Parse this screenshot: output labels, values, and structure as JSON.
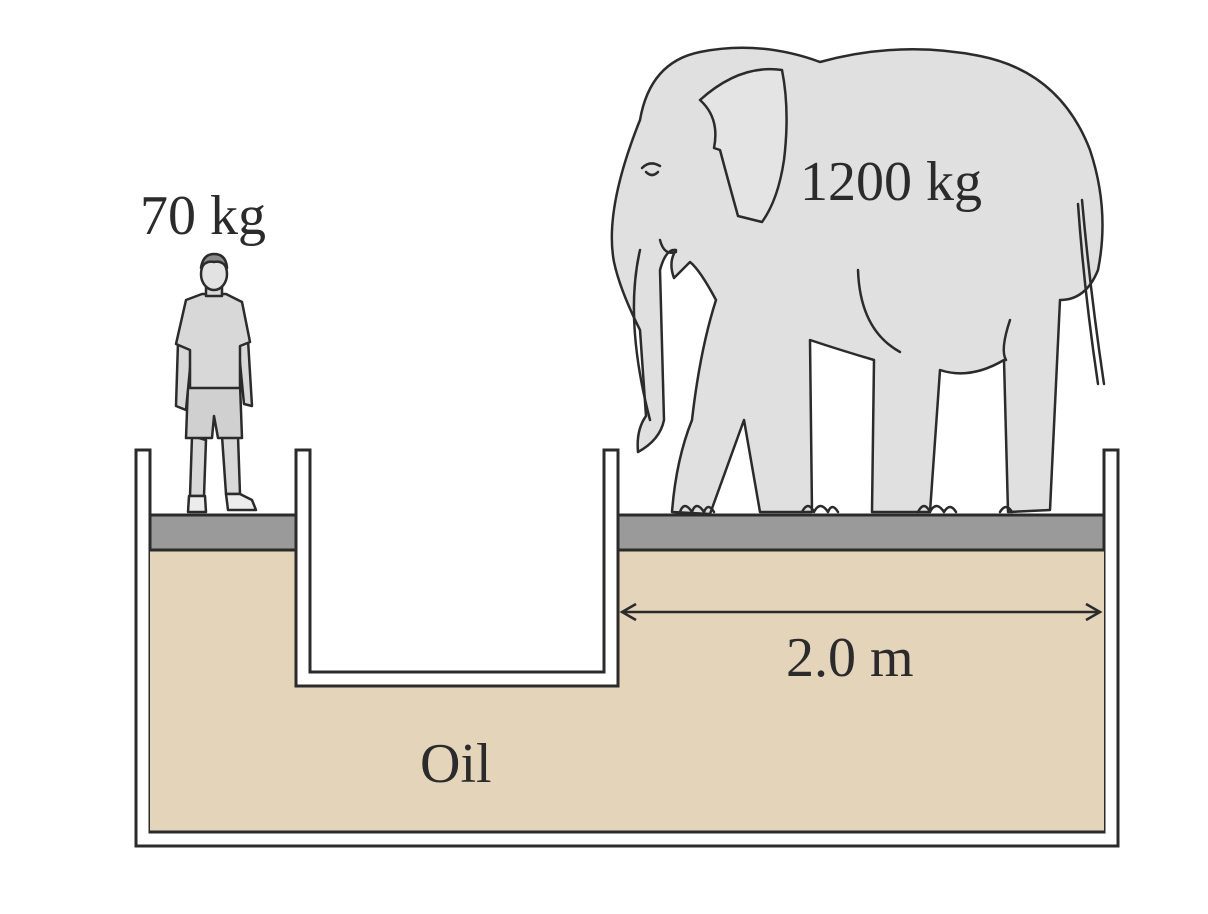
{
  "labels": {
    "person_mass": "70 kg",
    "elephant_mass": "1200 kg",
    "width": "2.0 m",
    "fluid": "Oil"
  },
  "colors": {
    "oil": "#e3d4ba",
    "piston": "#9a9a9a",
    "outline": "#2b2b2b",
    "elephant": "#e0e0e0",
    "person": "#d8d8d8",
    "background": "#ffffff"
  },
  "icons": {
    "person": "person-icon",
    "elephant": "elephant-icon",
    "dimension_arrow": "double-arrow-icon"
  }
}
